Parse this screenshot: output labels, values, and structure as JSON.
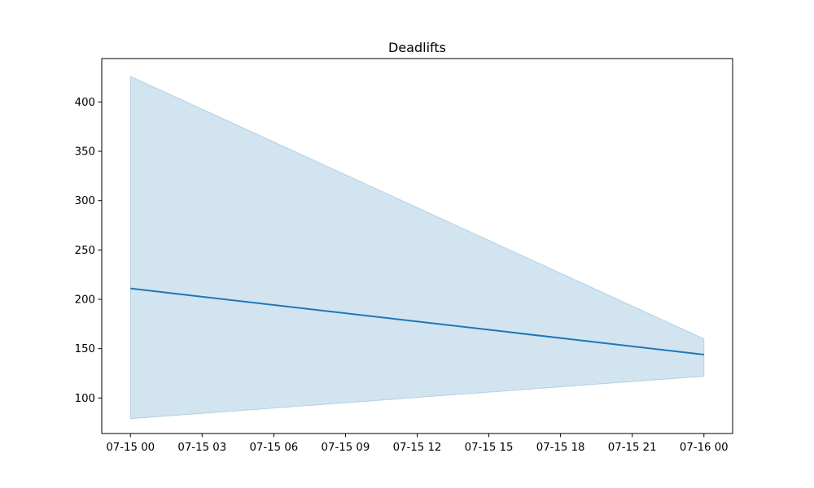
{
  "chart_data": {
    "type": "line",
    "title": "Deadlifts",
    "xlabel": "",
    "ylabel": "",
    "x": [
      "07-15 00:00",
      "07-16 00:00"
    ],
    "x_ticks": [
      "07-15 00",
      "07-15 03",
      "07-15 06",
      "07-15 09",
      "07-15 12",
      "07-15 15",
      "07-15 18",
      "07-15 21",
      "07-16 00"
    ],
    "y_ticks": [
      100,
      150,
      200,
      250,
      300,
      350,
      400
    ],
    "y_ticks_text": [
      "100",
      "150",
      "200",
      "250",
      "300",
      "350",
      "400"
    ],
    "xlim_hours": [
      -1.2,
      25.2
    ],
    "ylim": [
      64,
      444
    ],
    "series": [
      {
        "values": [
          211,
          144
        ],
        "band_upper": [
          426,
          160
        ],
        "band_lower": [
          79,
          122
        ],
        "color": "#1f77b4",
        "band_color": "#1f77b4",
        "band_opacity": 0.2
      }
    ],
    "grid": false,
    "legend": "none"
  }
}
